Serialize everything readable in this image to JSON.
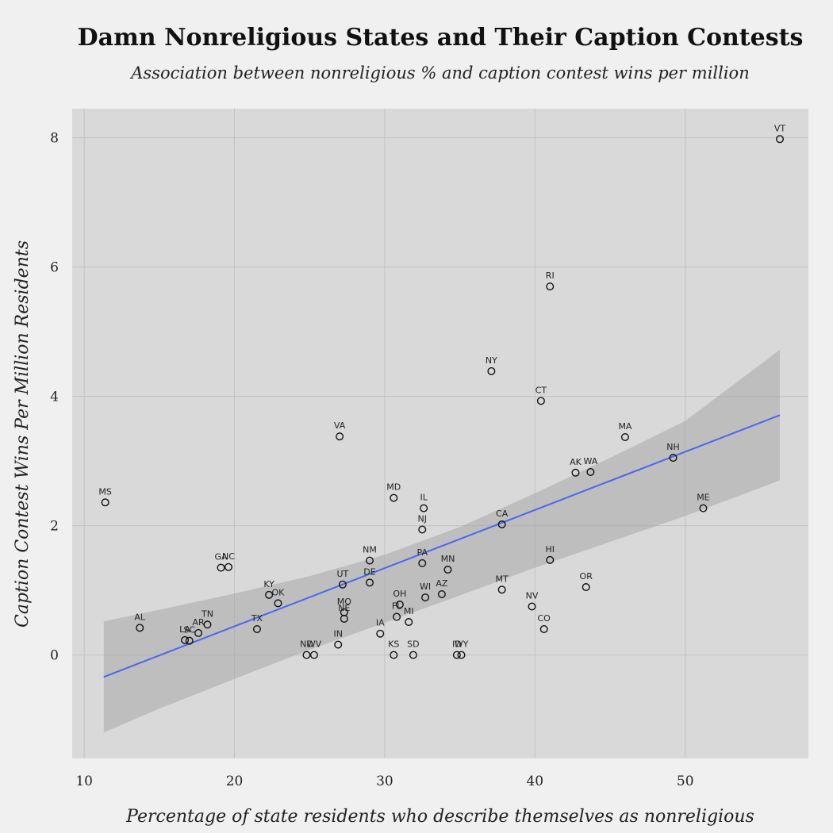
{
  "chart_data": {
    "type": "scatter",
    "title": "Damn Nonreligious States and Their Caption Contests",
    "subtitle": "Association between nonreligious % and caption contest wins per million",
    "xlabel": "Percentage of state residents who describe themselves as nonreligious",
    "ylabel": "Caption Contest Wins Per Million Residents",
    "xlim": [
      9.2,
      58.2
    ],
    "ylim": [
      -1.6,
      8.45
    ],
    "xticks": [
      10,
      20,
      30,
      40,
      50
    ],
    "yticks": [
      0,
      2,
      4,
      6,
      8
    ],
    "grid": true,
    "trendline": {
      "x": [
        11.3,
        56.3
      ],
      "y": [
        -0.34,
        3.71
      ]
    },
    "confidence_band": {
      "x": [
        11.3,
        15,
        20,
        25,
        30,
        35,
        40,
        45,
        50,
        56.3
      ],
      "upper": [
        0.52,
        0.7,
        0.95,
        1.22,
        1.55,
        1.98,
        2.5,
        3.05,
        3.62,
        4.72
      ],
      "lower": [
        -1.2,
        -0.83,
        -0.37,
        0.08,
        0.5,
        0.92,
        1.35,
        1.75,
        2.15,
        2.7
      ]
    },
    "points": [
      {
        "label": "VT",
        "x": 56.3,
        "y": 7.98
      },
      {
        "label": "RI",
        "x": 41.0,
        "y": 5.7
      },
      {
        "label": "NY",
        "x": 37.1,
        "y": 4.39
      },
      {
        "label": "CT",
        "x": 40.4,
        "y": 3.93
      },
      {
        "label": "VA",
        "x": 27.0,
        "y": 3.38
      },
      {
        "label": "MA",
        "x": 46.0,
        "y": 3.37
      },
      {
        "label": "NH",
        "x": 49.2,
        "y": 3.05
      },
      {
        "label": "AK",
        "x": 42.7,
        "y": 2.82
      },
      {
        "label": "WA",
        "x": 43.7,
        "y": 2.83
      },
      {
        "label": "MD",
        "x": 30.6,
        "y": 2.43
      },
      {
        "label": "MS",
        "x": 11.4,
        "y": 2.36
      },
      {
        "label": "IL",
        "x": 32.6,
        "y": 2.27
      },
      {
        "label": "ME",
        "x": 51.2,
        "y": 2.27
      },
      {
        "label": "CA",
        "x": 37.8,
        "y": 2.02
      },
      {
        "label": "NJ",
        "x": 32.5,
        "y": 1.94
      },
      {
        "label": "HI",
        "x": 41.0,
        "y": 1.47
      },
      {
        "label": "NM",
        "x": 29.0,
        "y": 1.46
      },
      {
        "label": "PA",
        "x": 32.5,
        "y": 1.42
      },
      {
        "label": "GA",
        "x": 19.1,
        "y": 1.35
      },
      {
        "label": "NC",
        "x": 19.6,
        "y": 1.36
      },
      {
        "label": "MN",
        "x": 34.2,
        "y": 1.32
      },
      {
        "label": "DE",
        "x": 29.0,
        "y": 1.12
      },
      {
        "label": "UT",
        "x": 27.2,
        "y": 1.09
      },
      {
        "label": "OR",
        "x": 43.4,
        "y": 1.05
      },
      {
        "label": "MT",
        "x": 37.8,
        "y": 1.01
      },
      {
        "label": "AZ",
        "x": 33.8,
        "y": 0.94
      },
      {
        "label": "KY",
        "x": 22.3,
        "y": 0.93
      },
      {
        "label": "WI",
        "x": 32.7,
        "y": 0.89
      },
      {
        "label": "OK",
        "x": 22.9,
        "y": 0.8
      },
      {
        "label": "OH",
        "x": 31.0,
        "y": 0.78
      },
      {
        "label": "NV",
        "x": 39.8,
        "y": 0.75
      },
      {
        "label": "MO",
        "x": 27.3,
        "y": 0.66
      },
      {
        "label": "FL",
        "x": 30.8,
        "y": 0.59
      },
      {
        "label": "NE",
        "x": 27.3,
        "y": 0.56
      },
      {
        "label": "MI",
        "x": 31.6,
        "y": 0.51
      },
      {
        "label": "TN",
        "x": 18.2,
        "y": 0.47
      },
      {
        "label": "AL",
        "x": 13.7,
        "y": 0.42
      },
      {
        "label": "CO",
        "x": 40.6,
        "y": 0.4
      },
      {
        "label": "TX",
        "x": 21.5,
        "y": 0.4
      },
      {
        "label": "AR",
        "x": 17.6,
        "y": 0.34
      },
      {
        "label": "IA",
        "x": 29.7,
        "y": 0.33
      },
      {
        "label": "LA",
        "x": 16.7,
        "y": 0.23
      },
      {
        "label": "SC",
        "x": 17.0,
        "y": 0.22
      },
      {
        "label": "IN",
        "x": 26.9,
        "y": 0.16
      },
      {
        "label": "ND",
        "x": 24.8,
        "y": 0.0
      },
      {
        "label": "WV",
        "x": 25.3,
        "y": 0.0
      },
      {
        "label": "KS",
        "x": 30.6,
        "y": 0.0
      },
      {
        "label": "SD",
        "x": 31.9,
        "y": 0.0
      },
      {
        "label": "ID",
        "x": 34.8,
        "y": 0.0
      },
      {
        "label": "WY",
        "x": 35.1,
        "y": 0.0
      }
    ]
  }
}
